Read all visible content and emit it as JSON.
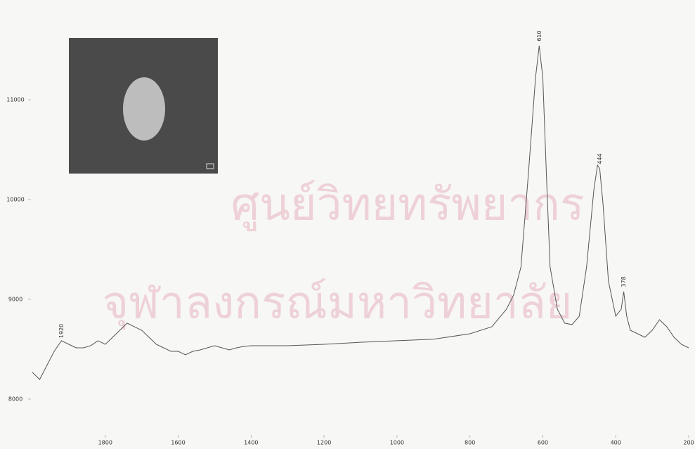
{
  "chart_data": {
    "type": "line",
    "watermark": [
      "ศูนย์วิทยทรัพยากร",
      "จุฬาลงกรณ์มหาวิทยาลัย"
    ],
    "x": [
      2000,
      1980,
      1960,
      1940,
      1920,
      1900,
      1880,
      1860,
      1840,
      1820,
      1800,
      1780,
      1760,
      1740,
      1720,
      1700,
      1680,
      1660,
      1640,
      1620,
      1600,
      1580,
      1560,
      1540,
      1520,
      1500,
      1480,
      1460,
      1440,
      1420,
      1400,
      1300,
      1200,
      1100,
      1000,
      900,
      800,
      740,
      700,
      680,
      660,
      640,
      620,
      610,
      600,
      590,
      580,
      560,
      540,
      520,
      500,
      480,
      460,
      450,
      444,
      435,
      420,
      400,
      385,
      378,
      370,
      360,
      340,
      320,
      300,
      280,
      260,
      240,
      220,
      200
    ],
    "series": [
      {
        "color": "#555555",
        "values": [
          8268,
          8197,
          8338,
          8479,
          8585,
          8549,
          8514,
          8514,
          8535,
          8585,
          8549,
          8620,
          8690,
          8761,
          8725,
          8690,
          8620,
          8549,
          8514,
          8479,
          8479,
          8444,
          8479,
          8493,
          8514,
          8535,
          8514,
          8493,
          8514,
          8528,
          8535,
          8535,
          8549,
          8570,
          8585,
          8600,
          8655,
          8725,
          8901,
          9042,
          9324,
          10239,
          11225,
          11542,
          11225,
          10239,
          9324,
          8901,
          8761,
          8747,
          8831,
          9324,
          10099,
          10345,
          10310,
          9958,
          9183,
          8831,
          8901,
          9078,
          8831,
          8690,
          8655,
          8620,
          8690,
          8796,
          8725,
          8620,
          8549,
          8514
        ]
      }
    ],
    "annotations": [
      {
        "label": "610",
        "x": 610
      },
      {
        "label": "444",
        "x": 444
      },
      {
        "label": "378",
        "x": 378
      },
      {
        "label": "1920",
        "x": 1920
      }
    ],
    "xlim": [
      2000,
      200
    ],
    "xticks": [
      1800,
      1600,
      1400,
      1200,
      1000,
      800,
      600,
      400,
      200
    ],
    "ylim": [
      7700,
      12000
    ],
    "yticks": [
      8000,
      9000,
      10000,
      11000
    ]
  }
}
